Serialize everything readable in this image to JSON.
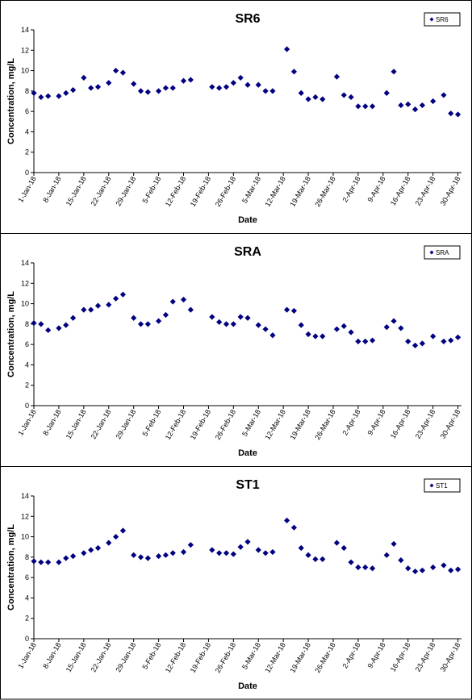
{
  "chart_data": [
    {
      "type": "scatter",
      "title": "SR6",
      "x_label": "Date",
      "y_label": "Concentration, mg/L",
      "x": [
        "2018-01-01",
        "2018-01-03",
        "2018-01-05",
        "2018-01-08",
        "2018-01-10",
        "2018-01-12",
        "2018-01-15",
        "2018-01-17",
        "2018-01-19",
        "2018-01-22",
        "2018-01-24",
        "2018-01-26",
        "2018-01-29",
        "2018-01-31",
        "2018-02-02",
        "2018-02-05",
        "2018-02-07",
        "2018-02-09",
        "2018-02-12",
        "2018-02-14",
        "2018-02-20",
        "2018-02-22",
        "2018-02-24",
        "2018-02-26",
        "2018-02-28",
        "2018-03-02",
        "2018-03-05",
        "2018-03-07",
        "2018-03-09",
        "2018-03-13",
        "2018-03-15",
        "2018-03-17",
        "2018-03-19",
        "2018-03-21",
        "2018-03-23",
        "2018-03-27",
        "2018-03-29",
        "2018-03-31",
        "2018-04-02",
        "2018-04-04",
        "2018-04-06",
        "2018-04-10",
        "2018-04-12",
        "2018-04-14",
        "2018-04-16",
        "2018-04-18",
        "2018-04-20",
        "2018-04-23",
        "2018-04-26",
        "2018-04-28",
        "2018-04-30"
      ],
      "series": [
        {
          "name": "SR6",
          "color": "#000080",
          "values": [
            7.8,
            7.4,
            7.5,
            7.5,
            7.8,
            8.1,
            9.3,
            8.3,
            8.4,
            8.8,
            10.0,
            9.8,
            8.7,
            8.0,
            7.9,
            8.0,
            8.3,
            8.3,
            9.0,
            9.1,
            8.4,
            8.3,
            8.4,
            8.8,
            9.3,
            8.6,
            8.6,
            8.0,
            8.0,
            12.1,
            9.9,
            7.8,
            7.2,
            7.4,
            7.2,
            9.4,
            7.6,
            7.4,
            6.5,
            6.5,
            6.5,
            7.8,
            9.9,
            6.6,
            6.7,
            6.2,
            6.6,
            7.0,
            7.6,
            5.8,
            5.7
          ]
        }
      ],
      "xlim": [
        "2018-01-01",
        "2018-05-01"
      ],
      "xticks": [
        {
          "value": "2018-01-01",
          "label": "1-Jan-18"
        },
        {
          "value": "2018-01-08",
          "label": "8-Jan-18"
        },
        {
          "value": "2018-01-15",
          "label": "15-Jan-18"
        },
        {
          "value": "2018-01-22",
          "label": "22-Jan-18"
        },
        {
          "value": "2018-01-29",
          "label": "29-Jan-18"
        },
        {
          "value": "2018-02-05",
          "label": "5-Feb-18"
        },
        {
          "value": "2018-02-12",
          "label": "12-Feb-18"
        },
        {
          "value": "2018-02-19",
          "label": "19-Feb-18"
        },
        {
          "value": "2018-02-26",
          "label": "26-Feb-18"
        },
        {
          "value": "2018-03-05",
          "label": "5-Mar-18"
        },
        {
          "value": "2018-03-12",
          "label": "12-Mar-18"
        },
        {
          "value": "2018-03-19",
          "label": "19-Mar-18"
        },
        {
          "value": "2018-03-26",
          "label": "26-Mar-18"
        },
        {
          "value": "2018-04-02",
          "label": "2-Apr-18"
        },
        {
          "value": "2018-04-09",
          "label": "9-Apr-18"
        },
        {
          "value": "2018-04-16",
          "label": "16-Apr-18"
        },
        {
          "value": "2018-04-23",
          "label": "23-Apr-18"
        },
        {
          "value": "2018-04-30",
          "label": "30-Apr-18"
        }
      ],
      "ylim": [
        0,
        14
      ],
      "yticks": [
        0,
        2,
        4,
        6,
        8,
        10,
        12,
        14
      ],
      "grid": false,
      "legend": "top-right"
    },
    {
      "type": "scatter",
      "title": "SRA",
      "x_label": "Date",
      "y_label": "Concentration, mg/L",
      "x": [
        "2018-01-01",
        "2018-01-03",
        "2018-01-05",
        "2018-01-08",
        "2018-01-10",
        "2018-01-12",
        "2018-01-15",
        "2018-01-17",
        "2018-01-19",
        "2018-01-22",
        "2018-01-24",
        "2018-01-26",
        "2018-01-29",
        "2018-01-31",
        "2018-02-02",
        "2018-02-05",
        "2018-02-07",
        "2018-02-09",
        "2018-02-12",
        "2018-02-14",
        "2018-02-20",
        "2018-02-22",
        "2018-02-24",
        "2018-02-26",
        "2018-02-28",
        "2018-03-02",
        "2018-03-05",
        "2018-03-07",
        "2018-03-09",
        "2018-03-13",
        "2018-03-15",
        "2018-03-17",
        "2018-03-19",
        "2018-03-21",
        "2018-03-23",
        "2018-03-27",
        "2018-03-29",
        "2018-03-31",
        "2018-04-02",
        "2018-04-04",
        "2018-04-06",
        "2018-04-10",
        "2018-04-12",
        "2018-04-14",
        "2018-04-16",
        "2018-04-18",
        "2018-04-20",
        "2018-04-23",
        "2018-04-26",
        "2018-04-28",
        "2018-04-30"
      ],
      "series": [
        {
          "name": "SRA",
          "color": "#000080",
          "values": [
            8.1,
            8.0,
            7.4,
            7.6,
            7.9,
            8.6,
            9.4,
            9.4,
            9.8,
            9.9,
            10.5,
            10.9,
            8.6,
            8.0,
            8.0,
            8.3,
            8.9,
            10.2,
            10.4,
            9.4,
            8.7,
            8.2,
            8.0,
            8.0,
            8.7,
            8.6,
            7.9,
            7.5,
            6.9,
            9.4,
            9.3,
            7.9,
            7.0,
            6.8,
            6.8,
            7.5,
            7.8,
            7.2,
            6.3,
            6.3,
            6.4,
            7.7,
            8.3,
            7.6,
            6.3,
            5.9,
            6.1,
            6.8,
            6.3,
            6.4,
            6.7
          ]
        }
      ],
      "xlim": [
        "2018-01-01",
        "2018-05-01"
      ],
      "xticks": [
        {
          "value": "2018-01-01",
          "label": "1-Jan-18"
        },
        {
          "value": "2018-01-08",
          "label": "8-Jan-18"
        },
        {
          "value": "2018-01-15",
          "label": "15-Jan-18"
        },
        {
          "value": "2018-01-22",
          "label": "22-Jan-18"
        },
        {
          "value": "2018-01-29",
          "label": "29-Jan-18"
        },
        {
          "value": "2018-02-05",
          "label": "5-Feb-18"
        },
        {
          "value": "2018-02-12",
          "label": "12-Feb-18"
        },
        {
          "value": "2018-02-19",
          "label": "19-Feb-18"
        },
        {
          "value": "2018-02-26",
          "label": "26-Feb-18"
        },
        {
          "value": "2018-03-05",
          "label": "5-Mar-18"
        },
        {
          "value": "2018-03-12",
          "label": "12-Mar-18"
        },
        {
          "value": "2018-03-19",
          "label": "19-Mar-18"
        },
        {
          "value": "2018-03-26",
          "label": "26-Mar-18"
        },
        {
          "value": "2018-04-02",
          "label": "2-Apr-18"
        },
        {
          "value": "2018-04-09",
          "label": "9-Apr-18"
        },
        {
          "value": "2018-04-16",
          "label": "16-Apr-18"
        },
        {
          "value": "2018-04-23",
          "label": "23-Apr-18"
        },
        {
          "value": "2018-04-30",
          "label": "30-Apr-18"
        }
      ],
      "ylim": [
        0,
        14
      ],
      "yticks": [
        0,
        2,
        4,
        6,
        8,
        10,
        12,
        14
      ],
      "grid": false,
      "legend": "top-right"
    },
    {
      "type": "scatter",
      "title": "ST1",
      "x_label": "Date",
      "y_label": "Concentration, mg/L",
      "x": [
        "2018-01-01",
        "2018-01-03",
        "2018-01-05",
        "2018-01-08",
        "2018-01-10",
        "2018-01-12",
        "2018-01-15",
        "2018-01-17",
        "2018-01-19",
        "2018-01-22",
        "2018-01-24",
        "2018-01-26",
        "2018-01-29",
        "2018-01-31",
        "2018-02-02",
        "2018-02-05",
        "2018-02-07",
        "2018-02-09",
        "2018-02-12",
        "2018-02-14",
        "2018-02-20",
        "2018-02-22",
        "2018-02-24",
        "2018-02-26",
        "2018-02-28",
        "2018-03-02",
        "2018-03-05",
        "2018-03-07",
        "2018-03-09",
        "2018-03-13",
        "2018-03-15",
        "2018-03-17",
        "2018-03-19",
        "2018-03-21",
        "2018-03-23",
        "2018-03-27",
        "2018-03-29",
        "2018-03-31",
        "2018-04-02",
        "2018-04-04",
        "2018-04-06",
        "2018-04-10",
        "2018-04-12",
        "2018-04-14",
        "2018-04-16",
        "2018-04-18",
        "2018-04-20",
        "2018-04-23",
        "2018-04-26",
        "2018-04-28",
        "2018-04-30"
      ],
      "series": [
        {
          "name": "ST1",
          "color": "#000080",
          "values": [
            7.6,
            7.5,
            7.5,
            7.5,
            7.9,
            8.1,
            8.4,
            8.7,
            8.9,
            9.4,
            10.0,
            10.6,
            8.2,
            8.0,
            7.9,
            8.1,
            8.2,
            8.4,
            8.5,
            9.2,
            8.7,
            8.4,
            8.4,
            8.3,
            9.0,
            9.5,
            8.7,
            8.4,
            8.5,
            11.6,
            10.9,
            8.9,
            8.2,
            7.8,
            7.8,
            9.4,
            8.9,
            7.5,
            7.0,
            7.0,
            6.9,
            8.2,
            9.3,
            7.7,
            6.9,
            6.6,
            6.7,
            7.0,
            7.2,
            6.7,
            6.8
          ]
        }
      ],
      "xlim": [
        "2018-01-01",
        "2018-05-01"
      ],
      "xticks": [
        {
          "value": "2018-01-01",
          "label": "1-Jan-18"
        },
        {
          "value": "2018-01-08",
          "label": "8-Jan-18"
        },
        {
          "value": "2018-01-15",
          "label": "15-Jan-18"
        },
        {
          "value": "2018-01-22",
          "label": "22-Jan-18"
        },
        {
          "value": "2018-01-29",
          "label": "29-Jan-18"
        },
        {
          "value": "2018-02-05",
          "label": "5-Feb-18"
        },
        {
          "value": "2018-02-12",
          "label": "12-Feb-18"
        },
        {
          "value": "2018-02-19",
          "label": "19-Feb-18"
        },
        {
          "value": "2018-02-26",
          "label": "26-Feb-18"
        },
        {
          "value": "2018-03-05",
          "label": "5-Mar-18"
        },
        {
          "value": "2018-03-12",
          "label": "12-Mar-18"
        },
        {
          "value": "2018-03-19",
          "label": "19-Mar-18"
        },
        {
          "value": "2018-03-26",
          "label": "26-Mar-18"
        },
        {
          "value": "2018-04-02",
          "label": "2-Apr-18"
        },
        {
          "value": "2018-04-09",
          "label": "9-Apr-18"
        },
        {
          "value": "2018-04-16",
          "label": "16-Apr-18"
        },
        {
          "value": "2018-04-23",
          "label": "23-Apr-18"
        },
        {
          "value": "2018-04-30",
          "label": "30-Apr-18"
        }
      ],
      "ylim": [
        0,
        14
      ],
      "yticks": [
        0,
        2,
        4,
        6,
        8,
        10,
        12,
        14
      ],
      "grid": false,
      "legend": "top-right"
    }
  ]
}
